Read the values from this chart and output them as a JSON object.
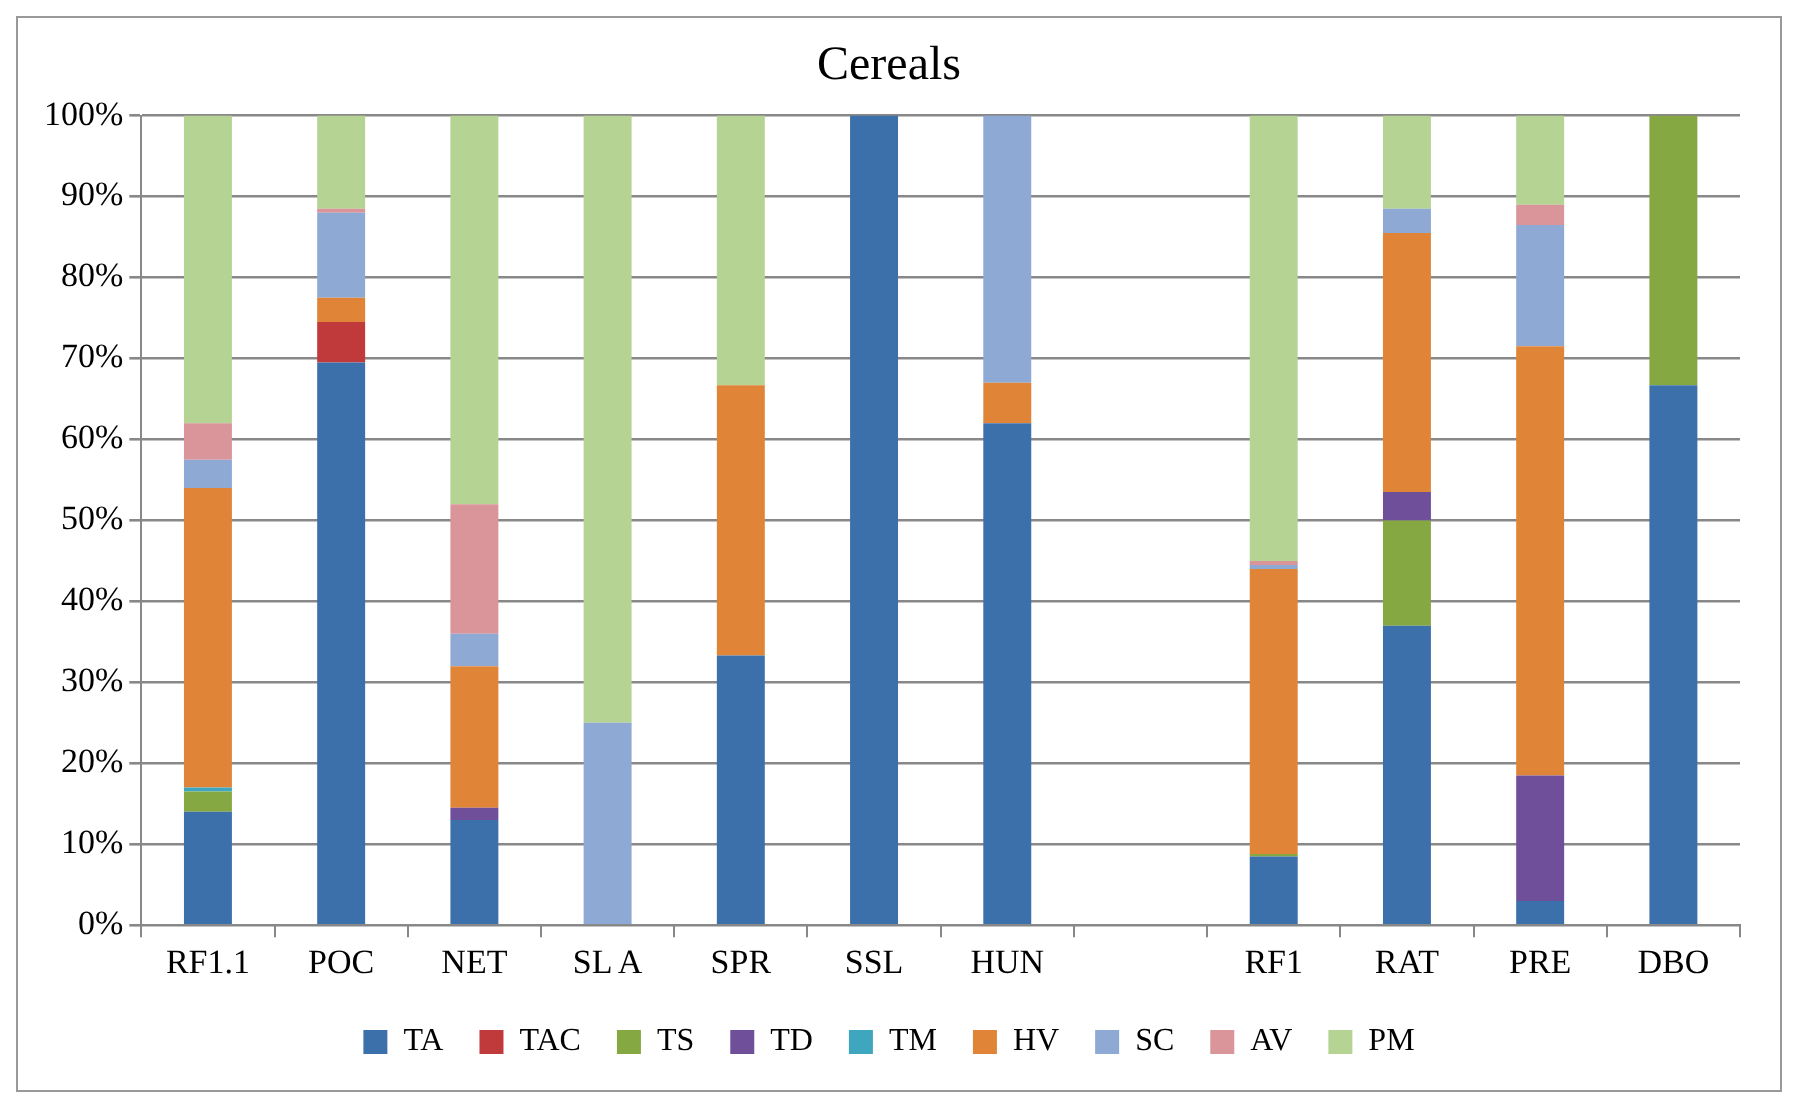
{
  "chart_data": {
    "type": "bar",
    "title": "Cereals",
    "stacked": true,
    "categories": [
      "RF1.1",
      "POC",
      "NET",
      "SL A",
      "SPR",
      "SSL",
      "HUN",
      null,
      "RF1",
      "RAT",
      "PRE",
      "DBO"
    ],
    "series": [
      {
        "name": "TA",
        "color": "#3c70ab",
        "values": [
          14,
          69.5,
          13,
          0,
          33.3,
          100,
          62,
          null,
          8.5,
          37,
          3,
          66.7
        ]
      },
      {
        "name": "TAC",
        "color": "#c0393b",
        "values": [
          0,
          5,
          0,
          0,
          0,
          0,
          0,
          null,
          0,
          0,
          0,
          0
        ]
      },
      {
        "name": "TS",
        "color": "#86a842",
        "values": [
          2.5,
          0,
          0,
          0,
          0,
          0,
          0,
          null,
          0.3,
          13,
          0,
          33.3
        ]
      },
      {
        "name": "TD",
        "color": "#6f4f9a",
        "values": [
          0,
          0,
          1.5,
          0,
          0,
          0,
          0,
          null,
          0,
          3.5,
          15.5,
          0
        ]
      },
      {
        "name": "TM",
        "color": "#3fa6c0",
        "values": [
          0.5,
          0,
          0,
          0,
          0,
          0,
          0,
          null,
          0,
          0,
          0,
          0
        ]
      },
      {
        "name": "HV",
        "color": "#e08538",
        "values": [
          37,
          3,
          17.5,
          0,
          33.4,
          0,
          5,
          null,
          35.2,
          32,
          53,
          0
        ]
      },
      {
        "name": "SC",
        "color": "#8fa9d5",
        "values": [
          3.5,
          10.5,
          4,
          25,
          0,
          0,
          33,
          null,
          0.5,
          3,
          15,
          0
        ]
      },
      {
        "name": "AV",
        "color": "#d9959a",
        "values": [
          4.5,
          0.5,
          16,
          0,
          0,
          0,
          0,
          null,
          0.5,
          0,
          2.5,
          0
        ]
      },
      {
        "name": "PM",
        "color": "#b5d393",
        "values": [
          38,
          11.5,
          48,
          75,
          33.3,
          0,
          0,
          null,
          55,
          11.5,
          11,
          0
        ]
      }
    ],
    "ylim": [
      0,
      100
    ],
    "yticks": [
      {
        "value": 0,
        "label": "0%"
      },
      {
        "value": 10,
        "label": "10%"
      },
      {
        "value": 20,
        "label": "20%"
      },
      {
        "value": 30,
        "label": "30%"
      },
      {
        "value": 40,
        "label": "40%"
      },
      {
        "value": 50,
        "label": "50%"
      },
      {
        "value": 60,
        "label": "60%"
      },
      {
        "value": 70,
        "label": "70%"
      },
      {
        "value": 80,
        "label": "80%"
      },
      {
        "value": 90,
        "label": "90%"
      },
      {
        "value": 100,
        "label": "100%"
      }
    ],
    "grid": "y",
    "legend": "bottom"
  }
}
